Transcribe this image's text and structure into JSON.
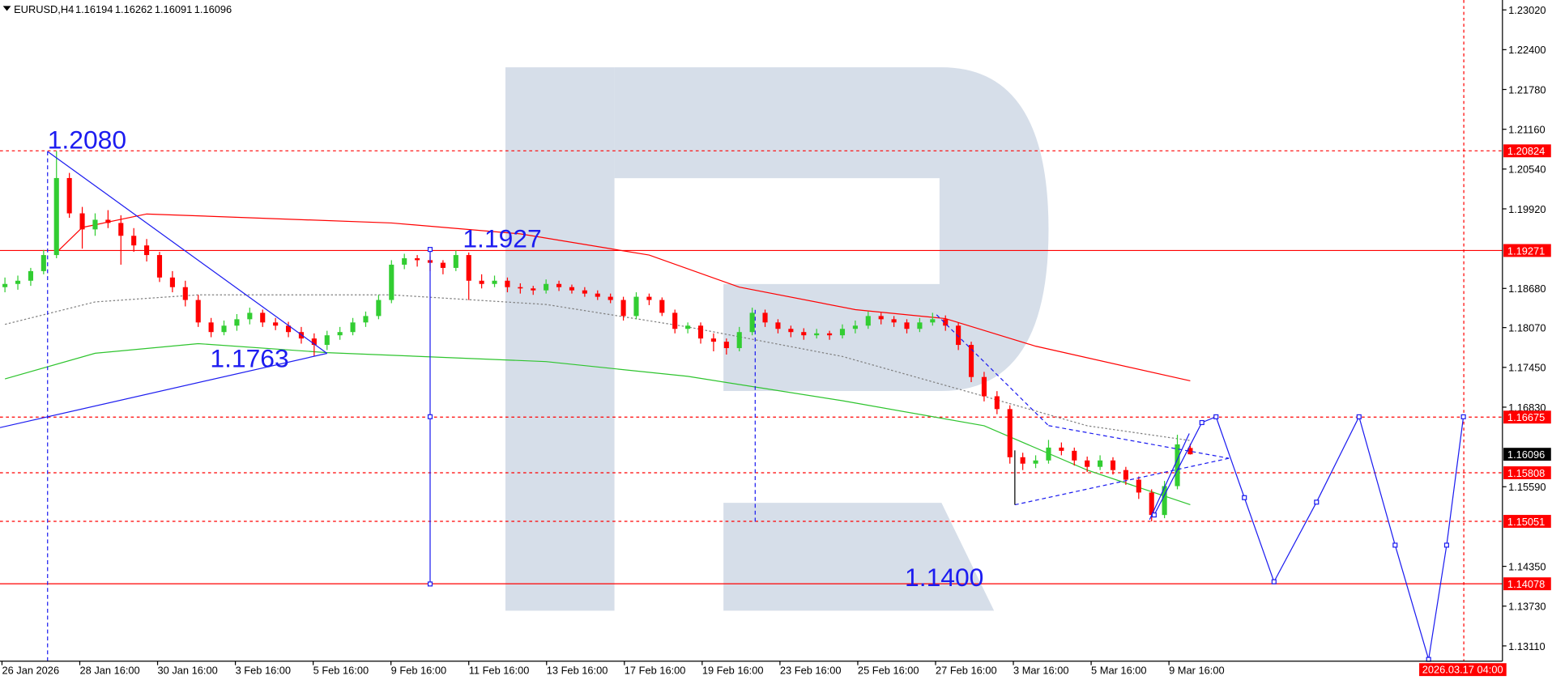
{
  "header": {
    "symbol": "EURUSD,H4",
    "open": 1.16194,
    "high": 1.16262,
    "low": 1.16091,
    "close": 1.16096
  },
  "chart_data": {
    "type": "candlestick",
    "bull_color": "#32cd32",
    "bear_color": "#ff0000",
    "ylim": [
      1.12872,
      1.23174
    ],
    "yticks": [
      {
        "value": 1.2302,
        "label": "1.23020"
      },
      {
        "value": 1.224,
        "label": "1.22400"
      },
      {
        "value": 1.2178,
        "label": "1.21780"
      },
      {
        "value": 1.2116,
        "label": "1.21160"
      },
      {
        "value": 1.2054,
        "label": "1.20540"
      },
      {
        "value": 1.1992,
        "label": "1.19920"
      },
      {
        "value": 1.1868,
        "label": "1.18680"
      },
      {
        "value": 1.1807,
        "label": "1.18070"
      },
      {
        "value": 1.1745,
        "label": "1.17450"
      },
      {
        "value": 1.1683,
        "label": "1.16830"
      },
      {
        "value": 1.1559,
        "label": "1.15590"
      },
      {
        "value": 1.1435,
        "label": "1.14350"
      },
      {
        "value": 1.1373,
        "label": "1.13730"
      },
      {
        "value": 1.1311,
        "label": "1.13110"
      }
    ],
    "x_labels": [
      "26 Jan 2026",
      "28 Jan 16:00",
      "30 Jan 16:00",
      "3 Feb 16:00",
      "5 Feb 16:00",
      "9 Feb 16:00",
      "11 Feb 16:00",
      "13 Feb 16:00",
      "17 Feb 16:00",
      "19 Feb 16:00",
      "23 Feb 16:00",
      "25 Feb 16:00",
      "27 Feb 16:00",
      "3 Mar 16:00",
      "5 Mar 16:00",
      "9 Mar 16:00"
    ],
    "time_marker": "2026.03.17 04:00",
    "ohlc": [
      [
        1.187,
        1.1885,
        1.1862,
        1.1875
      ],
      [
        1.1875,
        1.1888,
        1.1866,
        1.188
      ],
      [
        1.188,
        1.19,
        1.1872,
        1.1895
      ],
      [
        1.1895,
        1.1928,
        1.189,
        1.192
      ],
      [
        1.192,
        1.2082,
        1.1915,
        1.204
      ],
      [
        1.204,
        1.2048,
        1.1978,
        1.1985
      ],
      [
        1.1985,
        1.1995,
        1.193,
        1.196
      ],
      [
        1.196,
        1.1985,
        1.195,
        1.1975
      ],
      [
        1.1975,
        1.199,
        1.1962,
        1.197
      ],
      [
        1.197,
        1.1982,
        1.1905,
        1.195
      ],
      [
        1.195,
        1.1962,
        1.1925,
        1.1935
      ],
      [
        1.1935,
        1.1945,
        1.191,
        1.192
      ],
      [
        1.192,
        1.1925,
        1.1878,
        1.1885
      ],
      [
        1.1885,
        1.1895,
        1.1862,
        1.187
      ],
      [
        1.187,
        1.188,
        1.184,
        1.185
      ],
      [
        1.185,
        1.1858,
        1.1808,
        1.1815
      ],
      [
        1.1815,
        1.1822,
        1.1792,
        1.18
      ],
      [
        1.18,
        1.1818,
        1.1795,
        1.181
      ],
      [
        1.181,
        1.1828,
        1.1802,
        1.182
      ],
      [
        1.182,
        1.1838,
        1.1812,
        1.183
      ],
      [
        1.183,
        1.1835,
        1.1808,
        1.1815
      ],
      [
        1.1815,
        1.1822,
        1.1803,
        1.181
      ],
      [
        1.181,
        1.1816,
        1.1792,
        1.18
      ],
      [
        1.18,
        1.1808,
        1.1782,
        1.179
      ],
      [
        1.179,
        1.1798,
        1.1763,
        1.178
      ],
      [
        1.178,
        1.1802,
        1.1772,
        1.1795
      ],
      [
        1.1795,
        1.1808,
        1.1788,
        1.18
      ],
      [
        1.18,
        1.1822,
        1.1795,
        1.1815
      ],
      [
        1.1815,
        1.1832,
        1.1808,
        1.1825
      ],
      [
        1.1825,
        1.1858,
        1.182,
        1.185
      ],
      [
        1.185,
        1.1912,
        1.1845,
        1.1905
      ],
      [
        1.1905,
        1.1922,
        1.1898,
        1.1915
      ],
      [
        1.1915,
        1.192,
        1.1902,
        1.1912
      ],
      [
        1.1912,
        1.1918,
        1.1895,
        1.1908
      ],
      [
        1.1908,
        1.1912,
        1.189,
        1.19
      ],
      [
        1.19,
        1.1927,
        1.1895,
        1.192
      ],
      [
        1.192,
        1.1924,
        1.185,
        1.188
      ],
      [
        1.188,
        1.189,
        1.1868,
        1.1875
      ],
      [
        1.1875,
        1.1888,
        1.187,
        1.188
      ],
      [
        1.188,
        1.1885,
        1.1862,
        1.187
      ],
      [
        1.187,
        1.1876,
        1.186,
        1.1868
      ],
      [
        1.1868,
        1.1872,
        1.1858,
        1.1865
      ],
      [
        1.1865,
        1.1882,
        1.186,
        1.1875
      ],
      [
        1.1875,
        1.188,
        1.1864,
        1.187
      ],
      [
        1.187,
        1.1874,
        1.186,
        1.1865
      ],
      [
        1.1865,
        1.187,
        1.1855,
        1.186
      ],
      [
        1.186,
        1.1865,
        1.185,
        1.1855
      ],
      [
        1.1855,
        1.186,
        1.1845,
        1.185
      ],
      [
        1.185,
        1.1855,
        1.1818,
        1.1825
      ],
      [
        1.1825,
        1.1862,
        1.182,
        1.1855
      ],
      [
        1.1855,
        1.186,
        1.1842,
        1.185
      ],
      [
        1.185,
        1.1854,
        1.1825,
        1.183
      ],
      [
        1.183,
        1.1835,
        1.1798,
        1.1805
      ],
      [
        1.1805,
        1.1815,
        1.1798,
        1.181
      ],
      [
        1.181,
        1.1815,
        1.1782,
        1.179
      ],
      [
        1.179,
        1.1798,
        1.177,
        1.1785
      ],
      [
        1.1785,
        1.179,
        1.1765,
        1.1775
      ],
      [
        1.1775,
        1.1808,
        1.177,
        1.18
      ],
      [
        1.18,
        1.1838,
        1.1795,
        1.183
      ],
      [
        1.183,
        1.1835,
        1.1808,
        1.1815
      ],
      [
        1.1815,
        1.182,
        1.1798,
        1.1805
      ],
      [
        1.1805,
        1.181,
        1.1792,
        1.18
      ],
      [
        1.18,
        1.1806,
        1.1788,
        1.1795
      ],
      [
        1.1795,
        1.1805,
        1.179,
        1.1798
      ],
      [
        1.1798,
        1.1802,
        1.1788,
        1.1795
      ],
      [
        1.1795,
        1.1812,
        1.179,
        1.1805
      ],
      [
        1.1805,
        1.1818,
        1.1798,
        1.181
      ],
      [
        1.181,
        1.1832,
        1.1805,
        1.1825
      ],
      [
        1.1825,
        1.183,
        1.1812,
        1.182
      ],
      [
        1.182,
        1.1825,
        1.1808,
        1.1815
      ],
      [
        1.1815,
        1.182,
        1.1798,
        1.1805
      ],
      [
        1.1805,
        1.1822,
        1.18,
        1.1815
      ],
      [
        1.1815,
        1.183,
        1.181,
        1.182
      ],
      [
        1.182,
        1.1826,
        1.1802,
        1.181
      ],
      [
        1.181,
        1.1815,
        1.1772,
        1.178
      ],
      [
        1.178,
        1.1785,
        1.1722,
        1.173
      ],
      [
        1.173,
        1.1738,
        1.1692,
        1.17
      ],
      [
        1.17,
        1.1708,
        1.1672,
        1.168
      ],
      [
        1.168,
        1.1686,
        1.1595,
        1.1605
      ],
      [
        1.1605,
        1.1612,
        1.1585,
        1.1595
      ],
      [
        1.1595,
        1.1608,
        1.1588,
        1.16
      ],
      [
        1.16,
        1.1632,
        1.1595,
        1.162
      ],
      [
        1.162,
        1.1628,
        1.1608,
        1.1615
      ],
      [
        1.1615,
        1.162,
        1.1592,
        1.16
      ],
      [
        1.16,
        1.1606,
        1.1582,
        1.159
      ],
      [
        1.159,
        1.1608,
        1.1585,
        1.16
      ],
      [
        1.16,
        1.1605,
        1.1578,
        1.1585
      ],
      [
        1.1585,
        1.159,
        1.1562,
        1.157
      ],
      [
        1.157,
        1.1575,
        1.154,
        1.155
      ],
      [
        1.155,
        1.1555,
        1.1505,
        1.1515
      ],
      [
        1.1515,
        1.1568,
        1.151,
        1.156
      ],
      [
        1.156,
        1.164,
        1.1555,
        1.1625
      ],
      [
        1.16194,
        1.16262,
        1.16091,
        1.16096
      ]
    ],
    "series": [
      {
        "color": "#ff0000",
        "style": "solid",
        "x": [
          4,
          6,
          11,
          30,
          40,
          50,
          57,
          66,
          73,
          80,
          92
        ],
        "values": [
          1.1924,
          1.1963,
          1.1984,
          1.197,
          1.1953,
          1.192,
          1.187,
          1.1835,
          1.1821,
          1.1778,
          1.1724
        ]
      },
      {
        "color": "#808080",
        "style": "dotted",
        "x": [
          0,
          7,
          15,
          30,
          42,
          53,
          65,
          76,
          84,
          92
        ],
        "values": [
          1.1812,
          1.1847,
          1.1858,
          1.1858,
          1.1843,
          1.1808,
          1.1762,
          1.17,
          1.1654,
          1.1631
        ]
      },
      {
        "color": "#2ec42e",
        "style": "solid",
        "x": [
          0,
          7,
          15,
          25,
          42,
          53,
          65,
          76,
          84,
          92
        ],
        "values": [
          1.1727,
          1.1767,
          1.1782,
          1.1768,
          1.1754,
          1.1731,
          1.1693,
          1.1654,
          1.1585,
          1.1531
        ]
      }
    ],
    "forecast": {
      "color": "#1c1cf0",
      "x": [
        89.2,
        92.9,
        94,
        96.2,
        98.5,
        101.8,
        105.1,
        107.9,
        110.5,
        111.9,
        113.2
      ],
      "values": [
        1.1515,
        1.1659,
        1.1668,
        1.1542,
        1.1411,
        1.1535,
        1.1668,
        1.1468,
        1.129,
        1.1468,
        1.1668
      ]
    },
    "levels": [
      {
        "value": 1.20824,
        "style": "dashed"
      },
      {
        "value": 1.19271,
        "style": "solid"
      },
      {
        "value": 1.16675,
        "style": "dashed"
      },
      {
        "value": 1.15808,
        "style": "dashed"
      },
      {
        "value": 1.15051,
        "style": "dashed"
      },
      {
        "value": 1.14078,
        "style": "solid"
      }
    ],
    "level_color": "#ff0000",
    "current_price": 1.16096,
    "annotations": [
      "1.2080",
      "1.1927",
      "1.1763",
      "1.1400"
    ]
  }
}
